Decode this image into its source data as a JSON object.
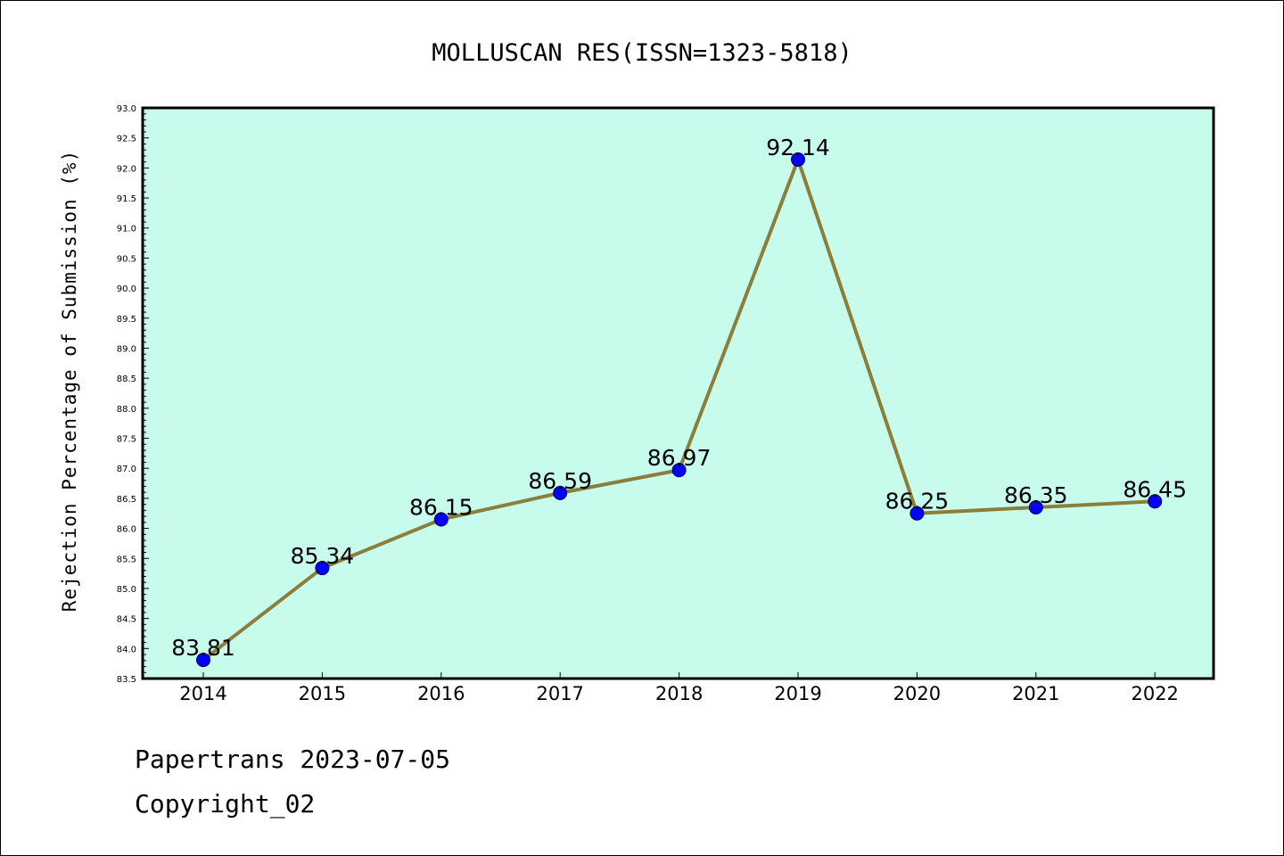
{
  "chart_data": {
    "type": "line",
    "title": "MOLLUSCAN RES(ISSN=1323-5818)",
    "xlabel": "",
    "ylabel": "Rejection Percentage of Submission (%)",
    "categories": [
      "2014",
      "2015",
      "2016",
      "2017",
      "2018",
      "2019",
      "2020",
      "2021",
      "2022"
    ],
    "values": [
      83.81,
      85.34,
      86.15,
      86.59,
      86.97,
      92.14,
      86.25,
      86.35,
      86.45
    ],
    "data_labels": [
      "83.81",
      "85.34",
      "86.15",
      "86.59",
      "86.97",
      "92.14",
      "86.25",
      "86.35",
      "86.45"
    ],
    "ylim": [
      83.5,
      93.0
    ],
    "yticks": [
      "83.5",
      "84.0",
      "84.5",
      "85.0",
      "85.5",
      "86.0",
      "86.5",
      "87.0",
      "87.5",
      "88.0",
      "88.5",
      "89.0",
      "89.5",
      "90.0",
      "90.5",
      "91.0",
      "91.5",
      "92.0",
      "92.5",
      "93.0"
    ],
    "grid": false,
    "legend": "none",
    "colors": {
      "plot_background": "#c7fcec",
      "line": "#8b7d3a",
      "marker": "#0000ff",
      "axes": "#000000"
    }
  },
  "footer": {
    "line1": "Papertrans 2023-07-05",
    "line2": "Copyright_02"
  }
}
